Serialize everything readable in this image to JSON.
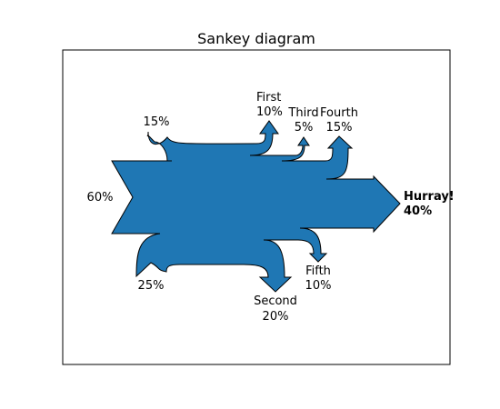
{
  "chart_data": {
    "type": "sankey",
    "title": "Sankey diagram",
    "inputs": [
      {
        "value_label": "60%"
      },
      {
        "value_label": "15%"
      },
      {
        "value_label": "25%"
      }
    ],
    "outputs": [
      {
        "name": "First",
        "value_label": "10%"
      },
      {
        "name": "Second",
        "value_label": "20%",
        "color": "#ff0000"
      },
      {
        "name": "Third",
        "value_label": "5%"
      },
      {
        "name": "Fourth",
        "value_label": "15%"
      },
      {
        "name": "Fifth",
        "value_label": "10%"
      },
      {
        "name": "Hurray!",
        "value_label": "40%",
        "bold": true
      }
    ],
    "fill_color": "#1f77b4",
    "stroke_color": "#000000"
  }
}
